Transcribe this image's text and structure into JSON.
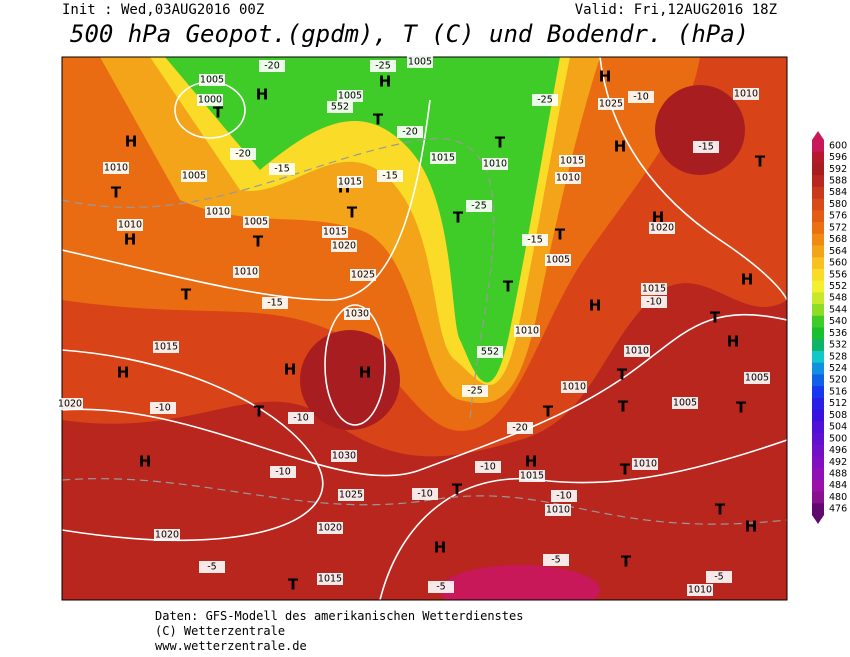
{
  "header": {
    "init": "Init : Wed,03AUG2016 00Z",
    "valid": "Valid: Fri,12AUG2016 18Z",
    "title": "500 hPa Geopot.(gpdm), T (C) und Bodendr. (hPa)"
  },
  "colorbar": {
    "ticks": [
      600,
      596,
      592,
      588,
      584,
      580,
      576,
      572,
      568,
      564,
      560,
      556,
      552,
      548,
      544,
      540,
      536,
      532,
      528,
      524,
      520,
      516,
      512,
      508,
      504,
      500,
      496,
      492,
      488,
      484,
      480,
      476
    ],
    "colors": [
      "#c8185a",
      "#b41a2e",
      "#a81e20",
      "#b82820",
      "#c83a1c",
      "#d84a18",
      "#e25c14",
      "#ea7012",
      "#f08a14",
      "#f4a418",
      "#f8c020",
      "#fadc28",
      "#f4f030",
      "#c8e82a",
      "#8cdc28",
      "#40cc28",
      "#18c030",
      "#10b468",
      "#10c8c8",
      "#1090e0",
      "#1060e8",
      "#1838f0",
      "#2820e8",
      "#3810e0",
      "#5010d8",
      "#6010d0",
      "#7010c8",
      "#8010c0",
      "#9010b8",
      "#9a10a8",
      "#8a1090",
      "#600a70"
    ]
  },
  "map": {
    "labels": [
      "H",
      "H",
      "H",
      "H",
      "H",
      "H",
      "H",
      "H",
      "H",
      "H",
      "H",
      "H",
      "H",
      "H",
      "H",
      "H",
      "H",
      "H",
      "T",
      "T",
      "T",
      "T",
      "T",
      "T",
      "T",
      "T",
      "T",
      "T",
      "T",
      "T",
      "T",
      "T",
      "T",
      "T",
      "T",
      "T",
      "T",
      "T",
      "T",
      "T",
      "1005",
      "1000",
      "1005",
      "1005",
      "1015",
      "1010",
      "1015",
      "1010",
      "1025",
      "1010",
      "1010",
      "1005",
      "1010",
      "1005",
      "1015",
      "1015",
      "1020",
      "1010",
      "1010",
      "1025",
      "1030",
      "1015",
      "1005",
      "1015",
      "1020",
      "1010",
      "1010",
      "1005",
      "1005",
      "1010",
      "1030",
      "1025",
      "1020",
      "1020",
      "1015",
      "1010",
      "1010",
      "1015",
      "1010",
      "1020",
      "-20",
      "-20",
      "-25",
      "-25",
      "-25",
      "-25",
      "-20",
      "-20",
      "-15",
      "-15",
      "-15",
      "-15",
      "-15",
      "-10",
      "-10",
      "-10",
      "-10",
      "-10",
      "-10",
      "-10",
      "-10",
      "-5",
      "-5",
      "-5",
      "-5",
      "552",
      "552"
    ]
  },
  "footer": {
    "line1": "Daten: GFS-Modell des amerikanischen Wetterdienstes",
    "line2": "(C) Wetterzentrale",
    "line3": "www.wetterzentrale.de"
  }
}
